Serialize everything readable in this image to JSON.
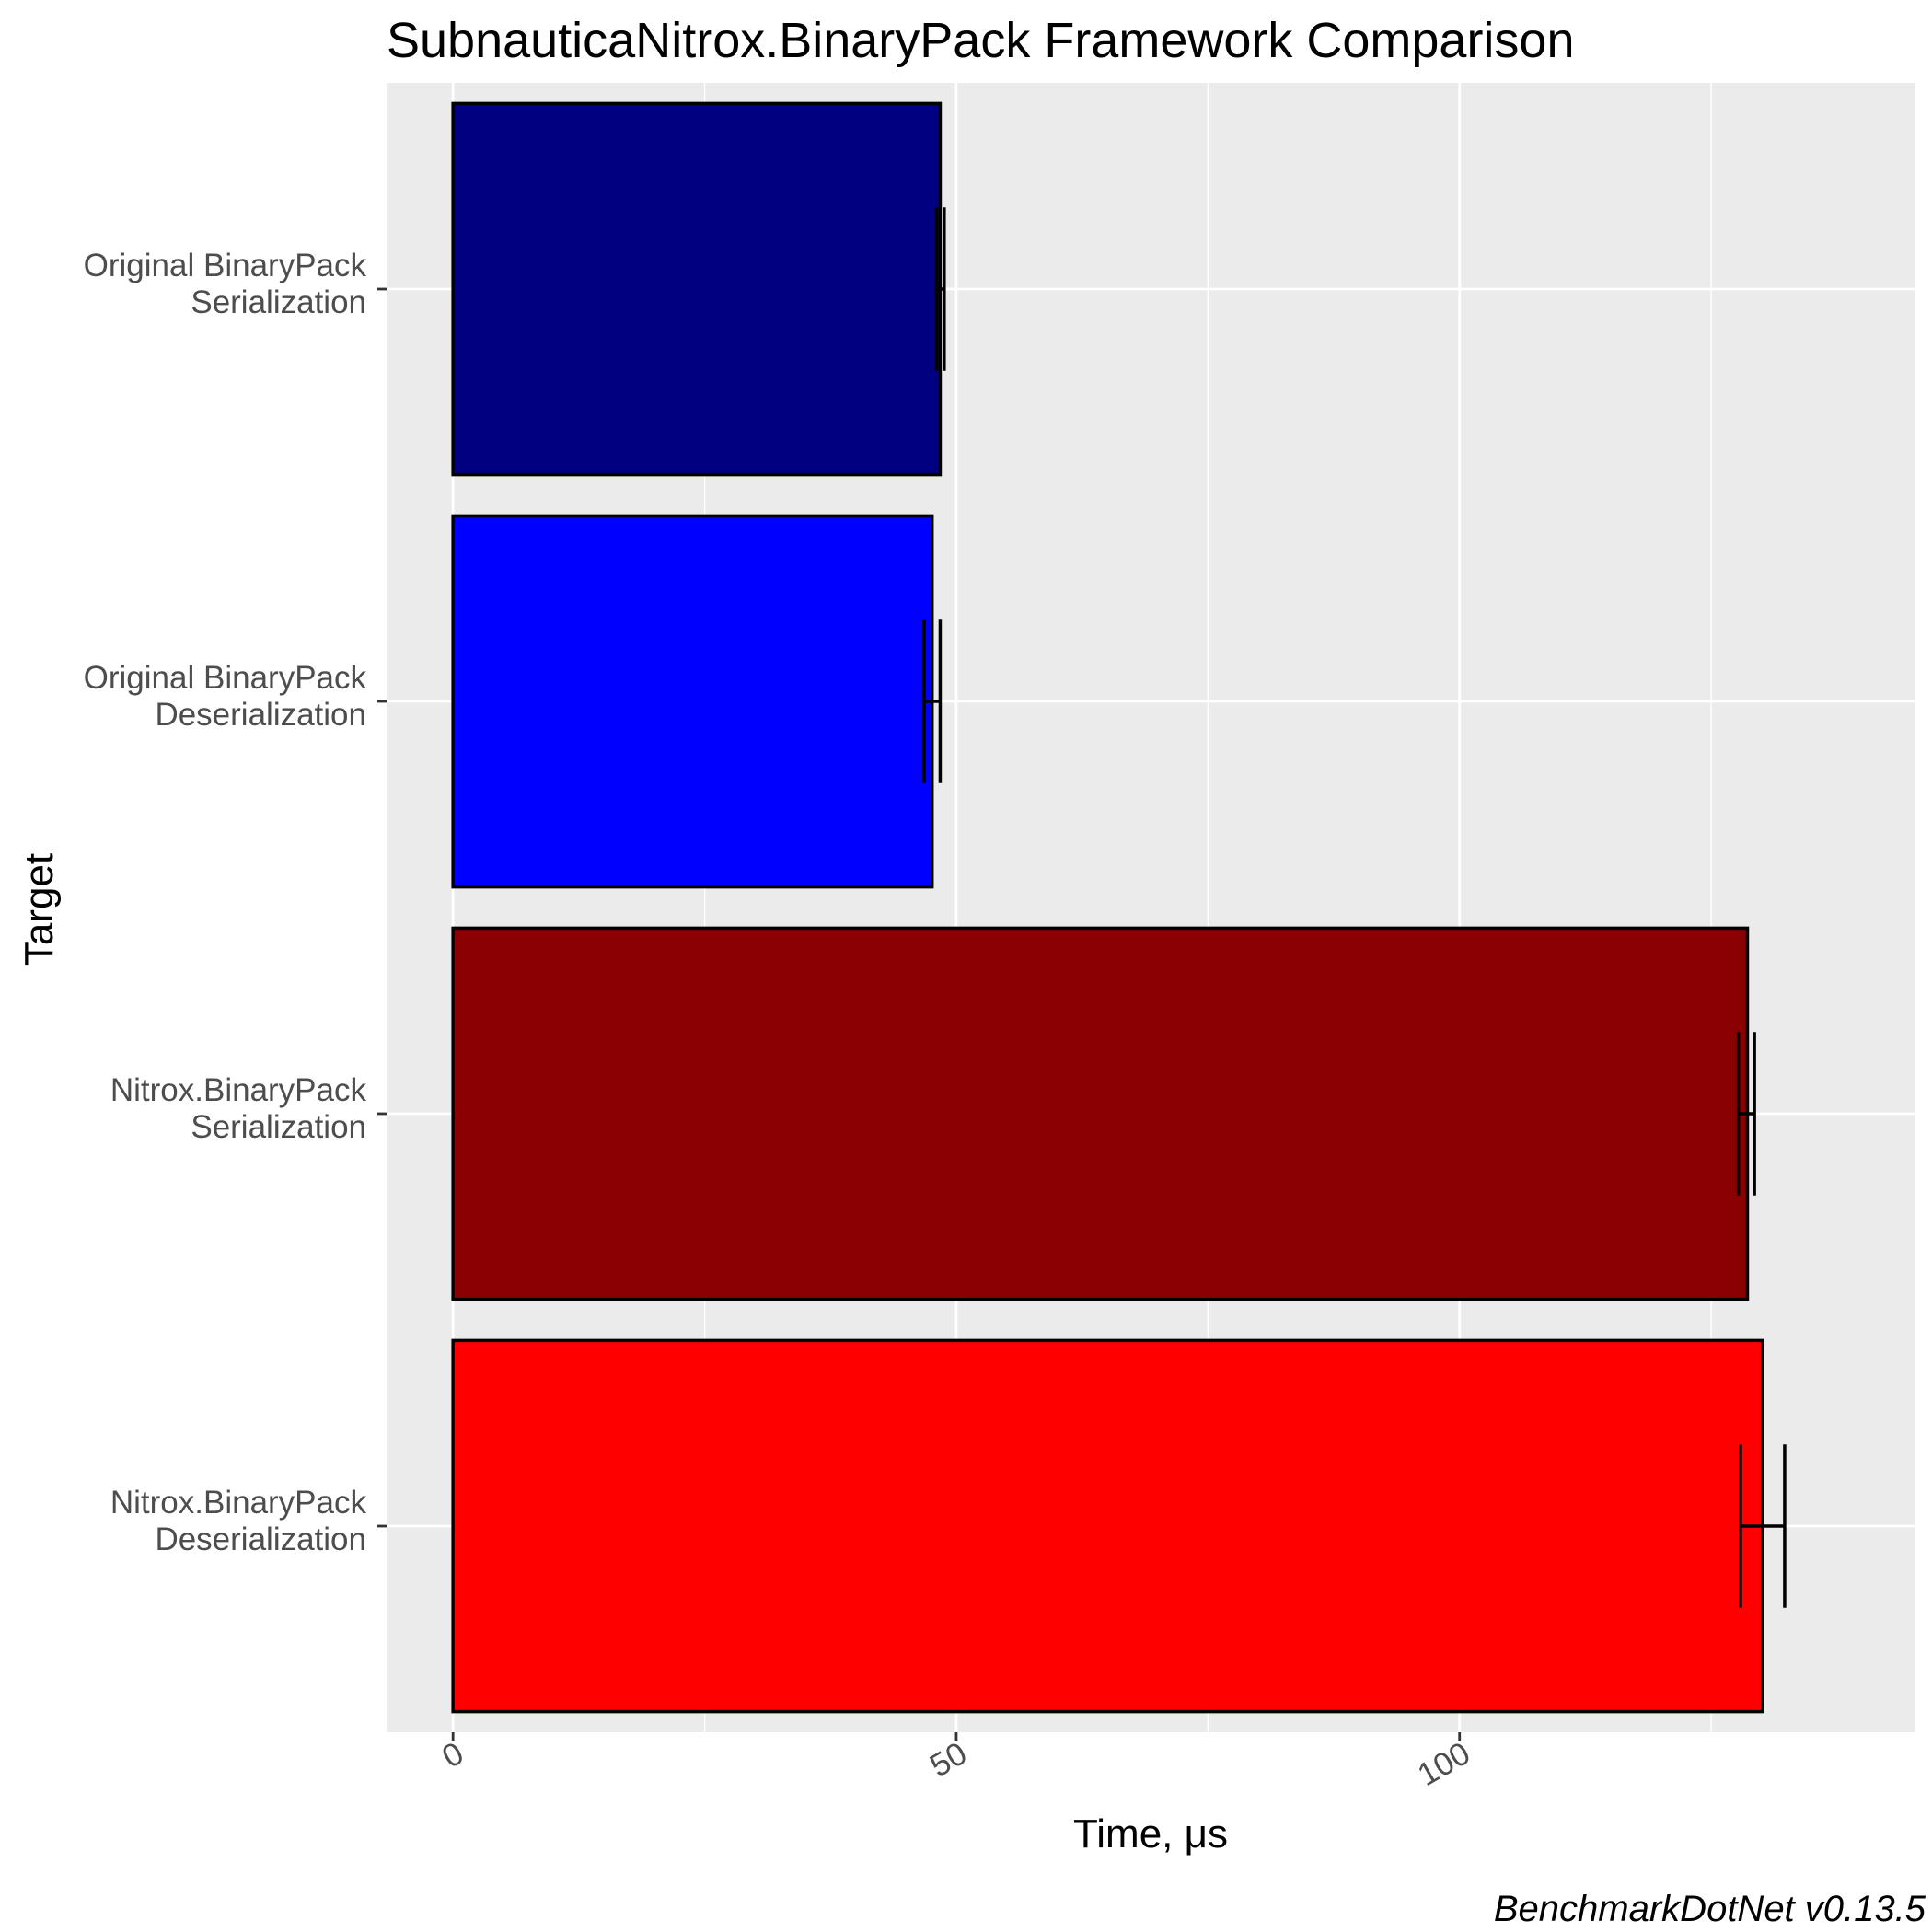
{
  "chart_data": {
    "type": "bar",
    "orientation": "horizontal",
    "title": "SubnauticaNitrox.BinaryPack Framework Comparison",
    "xlabel": "Time, μs",
    "ylabel": "Target",
    "caption": "BenchmarkDotNet v0.13.5",
    "xlim": [
      -6.6,
      145.2
    ],
    "x_ticks": [
      0,
      50,
      100
    ],
    "grid": true,
    "legend": "none",
    "categories": [
      [
        "Original BinaryPack",
        "Serialization"
      ],
      [
        "Original BinaryPack",
        "Deserialization"
      ],
      [
        "Nitrox.BinaryPack",
        "Serialization"
      ],
      [
        "Nitrox.BinaryPack",
        "Deserialization"
      ]
    ],
    "values": [
      48.4,
      47.6,
      128.6,
      130.1
    ],
    "error_low": [
      48.0,
      46.8,
      127.7,
      127.9
    ],
    "error_high": [
      48.8,
      48.4,
      129.3,
      132.3
    ],
    "colors": [
      "#000080",
      "#0000ff",
      "#8b0000",
      "#ff0000"
    ]
  }
}
